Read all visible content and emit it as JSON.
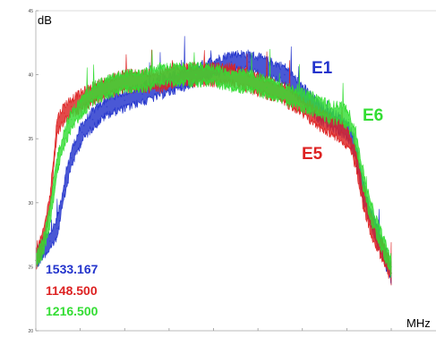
{
  "chart_data": {
    "type": "line",
    "title": "",
    "ylabel": "dB",
    "xlabel": "MHz",
    "ylim": [
      20,
      45
    ],
    "yticks": [
      "45",
      "40",
      "35",
      "30",
      "25",
      "20"
    ],
    "grid": false,
    "series": [
      {
        "name": "E1",
        "value_label": "1533.167",
        "color": "#2233cc",
        "x": [
          0.0,
          0.02,
          0.04,
          0.06,
          0.08,
          0.1,
          0.13,
          0.16,
          0.2,
          0.25,
          0.3,
          0.35,
          0.4,
          0.45,
          0.5,
          0.55,
          0.6,
          0.65,
          0.7,
          0.75,
          0.8,
          0.83,
          0.86,
          0.88,
          0.9,
          0.92,
          0.94,
          0.96,
          0.98,
          1.0
        ],
        "y": [
          25.5,
          26.5,
          27.0,
          28.0,
          31.0,
          33.5,
          35.5,
          36.5,
          37.5,
          38.0,
          38.5,
          39.0,
          39.5,
          40.0,
          40.5,
          41.0,
          41.0,
          40.5,
          40.0,
          38.5,
          37.0,
          36.5,
          36.0,
          35.5,
          34.0,
          31.0,
          29.0,
          27.5,
          26.0,
          24.5
        ]
      },
      {
        "name": "E5",
        "value_label": "1148.500",
        "color": "#dd2222",
        "x": [
          0.0,
          0.02,
          0.04,
          0.06,
          0.08,
          0.1,
          0.13,
          0.16,
          0.2,
          0.25,
          0.3,
          0.35,
          0.4,
          0.45,
          0.5,
          0.55,
          0.6,
          0.65,
          0.7,
          0.75,
          0.8,
          0.83,
          0.86,
          0.88,
          0.9,
          0.92,
          0.94,
          0.96,
          0.98,
          1.0
        ],
        "y": [
          25.5,
          27.0,
          30.0,
          36.0,
          37.0,
          37.5,
          38.0,
          38.5,
          39.0,
          39.5,
          39.5,
          39.5,
          40.0,
          40.0,
          40.0,
          40.0,
          39.5,
          39.0,
          38.5,
          37.5,
          36.5,
          36.0,
          35.5,
          35.0,
          33.5,
          30.5,
          28.5,
          27.0,
          26.0,
          24.5
        ]
      },
      {
        "name": "E6",
        "value_label": "1216.500",
        "color": "#33dd33",
        "x": [
          0.0,
          0.02,
          0.04,
          0.06,
          0.08,
          0.1,
          0.13,
          0.16,
          0.2,
          0.25,
          0.3,
          0.35,
          0.4,
          0.45,
          0.5,
          0.55,
          0.6,
          0.65,
          0.7,
          0.75,
          0.8,
          0.83,
          0.86,
          0.88,
          0.9,
          0.92,
          0.94,
          0.96,
          0.98,
          1.0
        ],
        "y": [
          25.5,
          26.5,
          29.0,
          33.0,
          35.0,
          36.5,
          37.5,
          38.5,
          39.0,
          39.5,
          39.5,
          40.0,
          40.0,
          40.0,
          40.0,
          39.5,
          39.5,
          39.0,
          38.5,
          38.0,
          37.5,
          37.0,
          37.0,
          36.5,
          35.0,
          32.0,
          29.5,
          28.0,
          26.5,
          25.0
        ]
      }
    ]
  }
}
